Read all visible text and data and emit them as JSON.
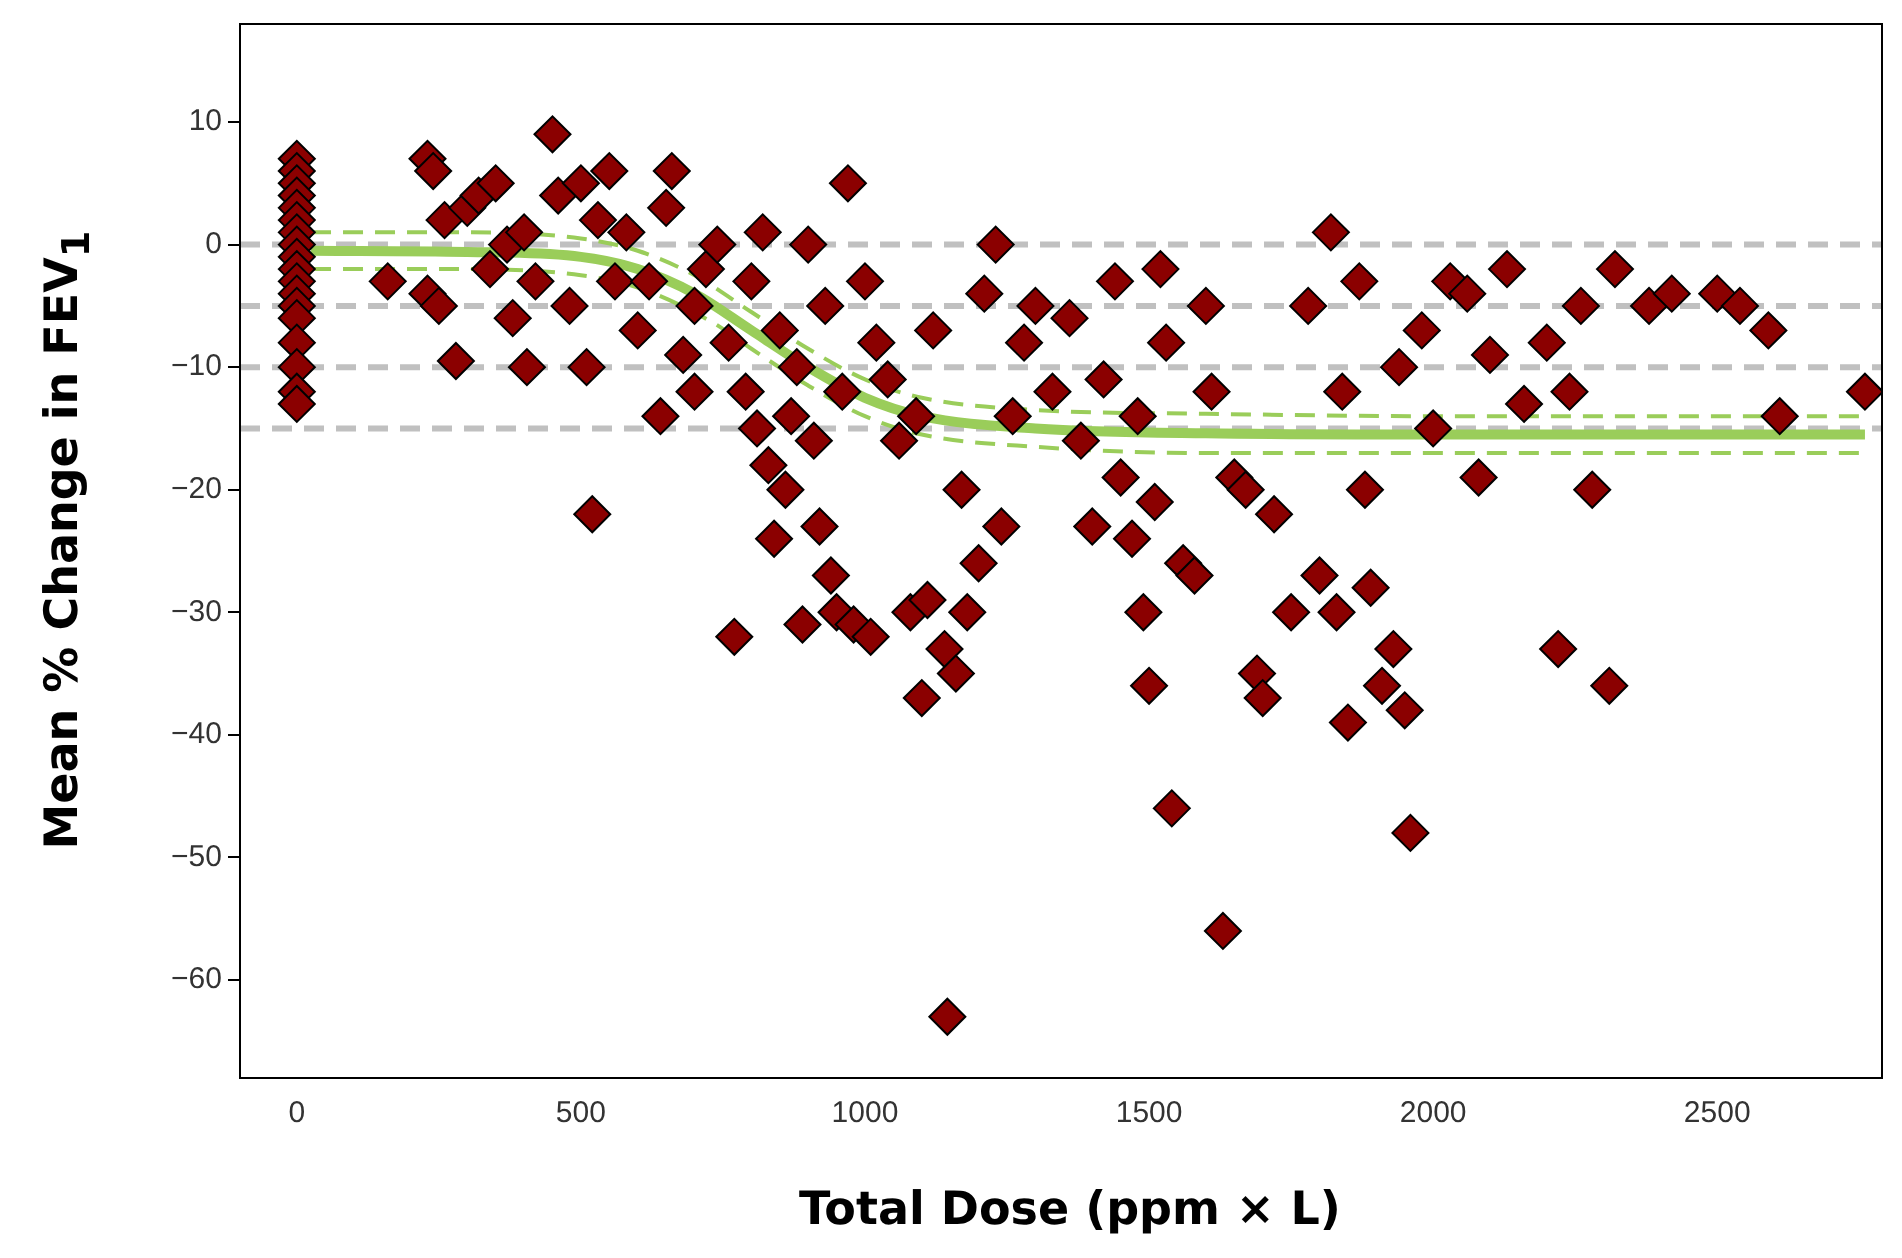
{
  "chart_data": {
    "type": "scatter",
    "xlabel": "Total Dose (ppm × L)",
    "ylabel": "Mean % Change in FEV$_{1}$",
    "xlim": [
      -100,
      2790
    ],
    "ylim": [
      -68,
      18
    ],
    "xticks": [
      0,
      500,
      1000,
      1500,
      2000,
      2500
    ],
    "yticks": [
      -60,
      -50,
      -40,
      -30,
      -20,
      -10,
      0,
      10
    ],
    "grid": false,
    "legend": false,
    "ref_lines": [
      {
        "axis": "y",
        "value": 0,
        "color": "#c0c0c0",
        "line_style": "dashed"
      },
      {
        "axis": "y",
        "value": -5,
        "color": "#c0c0c0",
        "line_style": "dashed"
      },
      {
        "axis": "y",
        "value": -10,
        "color": "#c0c0c0",
        "line_style": "dashed"
      },
      {
        "axis": "y",
        "value": -15,
        "color": "#c0c0c0",
        "line_style": "dashed"
      }
    ],
    "series": [
      {
        "type": "scatter",
        "color": "#8b0000",
        "marker": "diamond",
        "x": [
          0,
          0,
          0,
          0,
          0,
          0,
          0,
          0,
          0,
          0,
          0,
          0,
          0,
          0,
          0,
          0,
          0,
          0,
          160,
          230,
          240,
          230,
          250,
          260,
          280,
          300,
          320,
          340,
          350,
          370,
          380,
          400,
          405,
          420,
          450,
          460,
          480,
          500,
          510,
          520,
          530,
          550,
          560,
          580,
          600,
          620,
          640,
          650,
          660,
          680,
          700,
          700,
          720,
          740,
          760,
          770,
          790,
          800,
          810,
          820,
          830,
          840,
          850,
          860,
          870,
          880,
          890,
          900,
          910,
          920,
          930,
          940,
          950,
          960,
          970,
          980,
          1000,
          1010,
          1020,
          1040,
          1060,
          1080,
          1090,
          1100,
          1110,
          1120,
          1140,
          1145,
          1160,
          1170,
          1180,
          1200,
          1210,
          1230,
          1240,
          1260,
          1280,
          1300,
          1330,
          1360,
          1380,
          1400,
          1420,
          1440,
          1450,
          1470,
          1480,
          1490,
          1500,
          1510,
          1520,
          1530,
          1540,
          1560,
          1580,
          1600,
          1610,
          1630,
          1650,
          1670,
          1690,
          1700,
          1720,
          1750,
          1780,
          1800,
          1820,
          1830,
          1840,
          1850,
          1870,
          1880,
          1890,
          1910,
          1930,
          1940,
          1950,
          1960,
          1980,
          2000,
          2030,
          2060,
          2080,
          2100,
          2130,
          2160,
          2200,
          2220,
          2240,
          2260,
          2280,
          2310,
          2320,
          2380,
          2420,
          2500,
          2540,
          2590,
          2610,
          2760
        ],
        "values": [
          7,
          6,
          5,
          4,
          3,
          2,
          1,
          0,
          -1,
          -2,
          -3,
          -4,
          -5,
          -6,
          -8,
          -10,
          -12,
          -13,
          -3,
          7,
          6,
          -4,
          -5,
          2,
          -9.5,
          3,
          4,
          -2,
          5,
          0,
          -6,
          1,
          -10,
          -3,
          9,
          4,
          -5,
          5,
          -10,
          -22,
          2,
          6,
          -3,
          1,
          -7,
          -3,
          -14,
          3,
          6,
          -9,
          -12,
          -5,
          -2,
          0,
          -8,
          -32,
          -12,
          -3,
          -15,
          1,
          -18,
          -24,
          -7,
          -20,
          -14,
          -10,
          -31,
          0,
          -16,
          -23,
          -5,
          -27,
          -30,
          -12,
          5,
          -31,
          -3,
          -32,
          -8,
          -11,
          -16,
          -30,
          -14,
          -37,
          -29,
          -7,
          -33,
          -63,
          -35,
          -20,
          -30,
          -26,
          -4,
          0,
          -23,
          -14,
          -8,
          -5,
          -12,
          -6,
          -16,
          -23,
          -11,
          -3,
          -19,
          -24,
          -14,
          -30,
          -36,
          -21,
          -2,
          -8,
          -46,
          -26,
          -27,
          -5,
          -12,
          -56,
          -19,
          -20,
          -35,
          -37,
          -22,
          -30,
          -5,
          -27,
          1,
          -30,
          -12,
          -39,
          -3,
          -20,
          -28,
          -36,
          -33,
          -10,
          -38,
          -48,
          -7,
          -15,
          -3,
          -4,
          -19,
          -9,
          -2,
          -13,
          -8,
          -33,
          -12,
          -5,
          -20,
          -36,
          -2,
          -5,
          -4,
          -4,
          -5,
          -7,
          -14,
          -12
        ]
      },
      {
        "type": "line",
        "color": "#9acd5a",
        "marker": "none",
        "line_style": "solid",
        "x": [
          25,
          300,
          500,
          600,
          700,
          800,
          900,
          1000,
          1100,
          1300,
          1600,
          2050,
          2760
        ],
        "values": [
          -0.5,
          -0.6,
          -1,
          -2,
          -4,
          -7,
          -10,
          -12.5,
          -14,
          -15,
          -15.4,
          -15.5,
          -15.5
        ]
      },
      {
        "type": "line",
        "color": "#9acd5a",
        "marker": "none",
        "line_style": "dashed",
        "x": [
          25,
          300,
          500,
          600,
          730,
          800,
          900,
          1000,
          1100,
          1300,
          1600,
          2000,
          2760
        ],
        "values": [
          -2,
          -2,
          -2.5,
          -3.5,
          -6.3,
          -8.5,
          -11.5,
          -14,
          -15.5,
          -16.5,
          -17,
          -17,
          -17
        ]
      },
      {
        "type": "line",
        "color": "#9acd5a",
        "marker": "none",
        "line_style": "dashed",
        "x": [
          25,
          300,
          500,
          600,
          700,
          800,
          900,
          1000,
          1100,
          1300,
          1600,
          2000,
          2760
        ],
        "values": [
          1,
          1,
          0.5,
          -0.5,
          -2.5,
          -5.5,
          -8.5,
          -11,
          -12.5,
          -13.5,
          -13.8,
          -14,
          -14
        ]
      }
    ]
  }
}
